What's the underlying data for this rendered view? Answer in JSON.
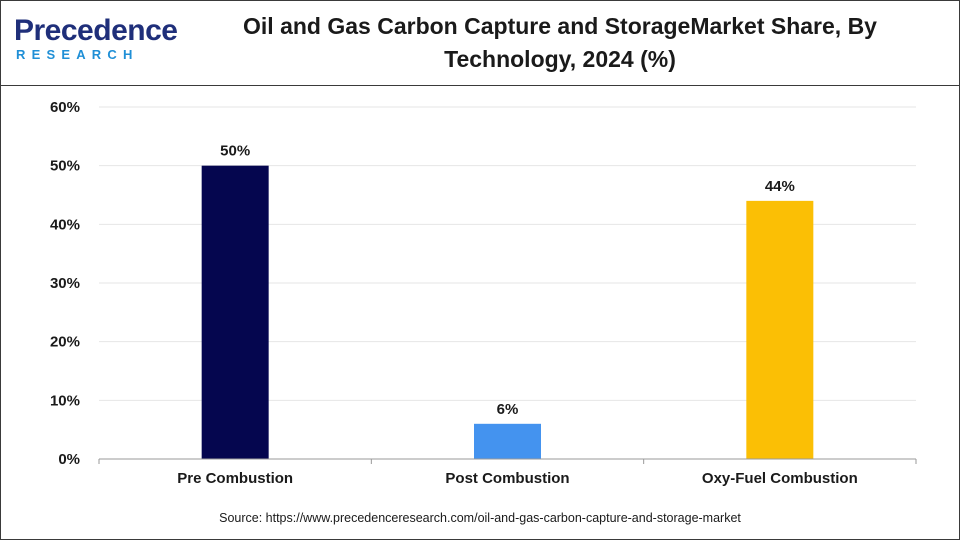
{
  "logo": {
    "word": "Precedence",
    "sub": "RESEARCH"
  },
  "colors": {
    "brand_dark": "#1f2f7a",
    "brand_light": "#1f8fd6"
  },
  "chart_data": {
    "type": "bar",
    "title": "Oil and Gas Carbon Capture and StorageMarket Share, By Technology, 2024 (%)",
    "xlabel": "",
    "ylabel": "",
    "categories": [
      "Pre Combustion",
      "Post Combustion",
      "Oxy-Fuel Combustion"
    ],
    "values": [
      50,
      6,
      44
    ],
    "data_labels": [
      "50%",
      "6%",
      "44%"
    ],
    "colors": [
      "#05064f",
      "#4493ef",
      "#fbbf05"
    ],
    "ylim": [
      0,
      60
    ],
    "yticks": [
      0,
      10,
      20,
      30,
      40,
      50,
      60
    ],
    "ytick_labels": [
      "0%",
      "10%",
      "20%",
      "30%",
      "40%",
      "50%",
      "60%"
    ],
    "grid": true,
    "legend": "none"
  },
  "source": "Source: https://www.precedenceresearch.com/oil-and-gas-carbon-capture-and-storage-market"
}
